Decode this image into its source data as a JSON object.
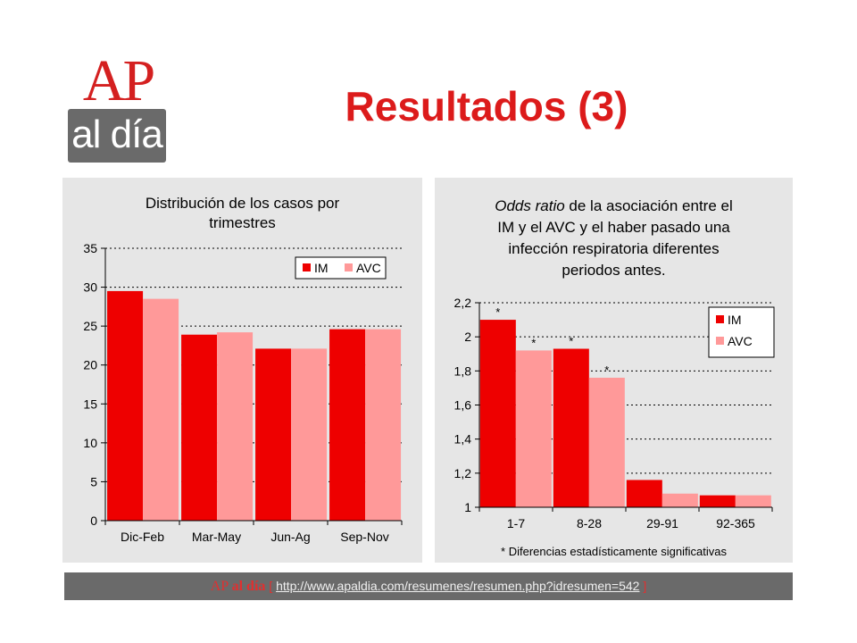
{
  "logo": {
    "top": "AP",
    "bottom": "al día"
  },
  "page_title": "Resultados (3)",
  "charts": [
    {
      "title_lines": [
        "Distribución  de los casos por",
        "trimestres"
      ]
    },
    {
      "title_lines": [
        {
          "em": "Odds ratio",
          "rest": " de la asociación entre el"
        },
        {
          "text": "IM y el AVC y el haber pasado una"
        },
        {
          "text": "infección respiratoria diferentes"
        },
        {
          "text": "periodos antes."
        }
      ],
      "footnote": "* Diferencias estadísticamente significativas"
    }
  ],
  "chart_data": [
    {
      "type": "bar",
      "title": "Distribución  de los casos por trimestres",
      "categories": [
        "Dic-Feb",
        "Mar-May",
        "Jun-Ag",
        "Sep-Nov"
      ],
      "series": [
        {
          "name": "IM",
          "values": [
            29.5,
            23.9,
            22.1,
            24.6
          ]
        },
        {
          "name": "AVC",
          "values": [
            28.5,
            24.2,
            22.1,
            24.6
          ]
        }
      ],
      "ylim": [
        0,
        35
      ],
      "yticks": [
        "0",
        "5",
        "10",
        "15",
        "20",
        "25",
        "30",
        "35"
      ],
      "ytick_values": [
        0,
        5,
        10,
        15,
        20,
        25,
        30,
        35
      ],
      "legend": "top-right",
      "grid": "dashed-horizontal"
    },
    {
      "type": "bar",
      "title": "Odds ratio de la asociación entre el IM y el AVC y el haber pasado una infección respiratoria diferentes periodos antes.",
      "categories": [
        "1-7",
        "8-28",
        "29-91",
        "92-365"
      ],
      "series": [
        {
          "name": "IM",
          "values": [
            2.1,
            1.93,
            1.16,
            1.07
          ],
          "significant": [
            true,
            true,
            false,
            false
          ]
        },
        {
          "name": "AVC",
          "values": [
            1.92,
            1.76,
            1.08,
            1.07
          ],
          "significant": [
            true,
            true,
            false,
            false
          ]
        }
      ],
      "ylim": [
        1,
        2.2
      ],
      "yticks": [
        "1",
        "1,2",
        "1,4",
        "1,6",
        "1,8",
        "2",
        "2,2"
      ],
      "ytick_values": [
        1,
        1.2,
        1.4,
        1.6,
        1.8,
        2,
        2.2
      ],
      "significance_mark": "*",
      "legend": "right",
      "grid": "dashed-horizontal"
    }
  ],
  "colors": {
    "IM": "#ee0000",
    "AVC": "#ff9999",
    "title": "#dc1b1b",
    "footer_bg": "#6a6a6a"
  },
  "footer": {
    "brand_ap": "AP",
    "brand_rest": "al día",
    "open_bracket": "[",
    "url": "http://www.apaldia.com/resumenes/resumen.php?idresumen=542",
    "close_bracket": "]"
  }
}
